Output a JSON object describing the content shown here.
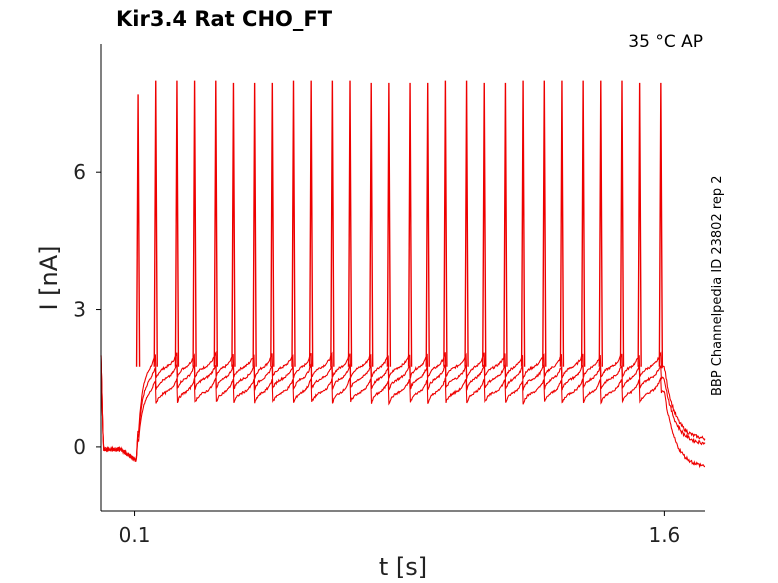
{
  "title": "Kir3.4  Rat  CHO_FT",
  "conditions": "35 °C  AP",
  "side_label": "BBP Channelpedia ID 23802 rep 2",
  "colors": {
    "trace": "#ee0000",
    "axis": "#000000",
    "text": "#222222"
  },
  "chart_data": {
    "type": "line",
    "xlabel": "t [s]",
    "ylabel": "I [nA]",
    "xticks": [
      {
        "value": 0.1,
        "label": "0.1"
      },
      {
        "value": 1.6,
        "label": "1.6"
      }
    ],
    "yticks": [
      {
        "value": 0,
        "label": "0"
      },
      {
        "value": 3,
        "label": "3"
      },
      {
        "value": 6,
        "label": "6"
      }
    ],
    "xlim": [
      0.005,
      1.715
    ],
    "ylim": [
      -1.4,
      8.8
    ],
    "stimulus_on": 0.105,
    "stimulus_off": 1.6,
    "spike_times": [
      0.11,
      0.16,
      0.22,
      0.27,
      0.33,
      0.38,
      0.44,
      0.49,
      0.55,
      0.6,
      0.66,
      0.71,
      0.77,
      0.82,
      0.88,
      0.93,
      0.98,
      1.04,
      1.09,
      1.15,
      1.2,
      1.26,
      1.31,
      1.37,
      1.42,
      1.48,
      1.53,
      1.59
    ],
    "spike_peaks": [
      7.7,
      8.0,
      8.0,
      8.0,
      8.0,
      7.95,
      7.95,
      7.95,
      8.0,
      8.0,
      8.0,
      8.0,
      7.95,
      7.95,
      7.95,
      7.95,
      8.0,
      8.0,
      7.95,
      7.95,
      8.0,
      8.0,
      8.0,
      8.0,
      8.0,
      8.0,
      7.95,
      7.95
    ],
    "grid": false,
    "series": [
      {
        "baseline_pre": -0.05,
        "plateau": 1.75,
        "tail": 0.15
      },
      {
        "baseline_pre": -0.05,
        "plateau": 1.5,
        "tail": 0.05
      },
      {
        "baseline_pre": -0.05,
        "plateau": 1.2,
        "tail": -0.45
      }
    ]
  }
}
